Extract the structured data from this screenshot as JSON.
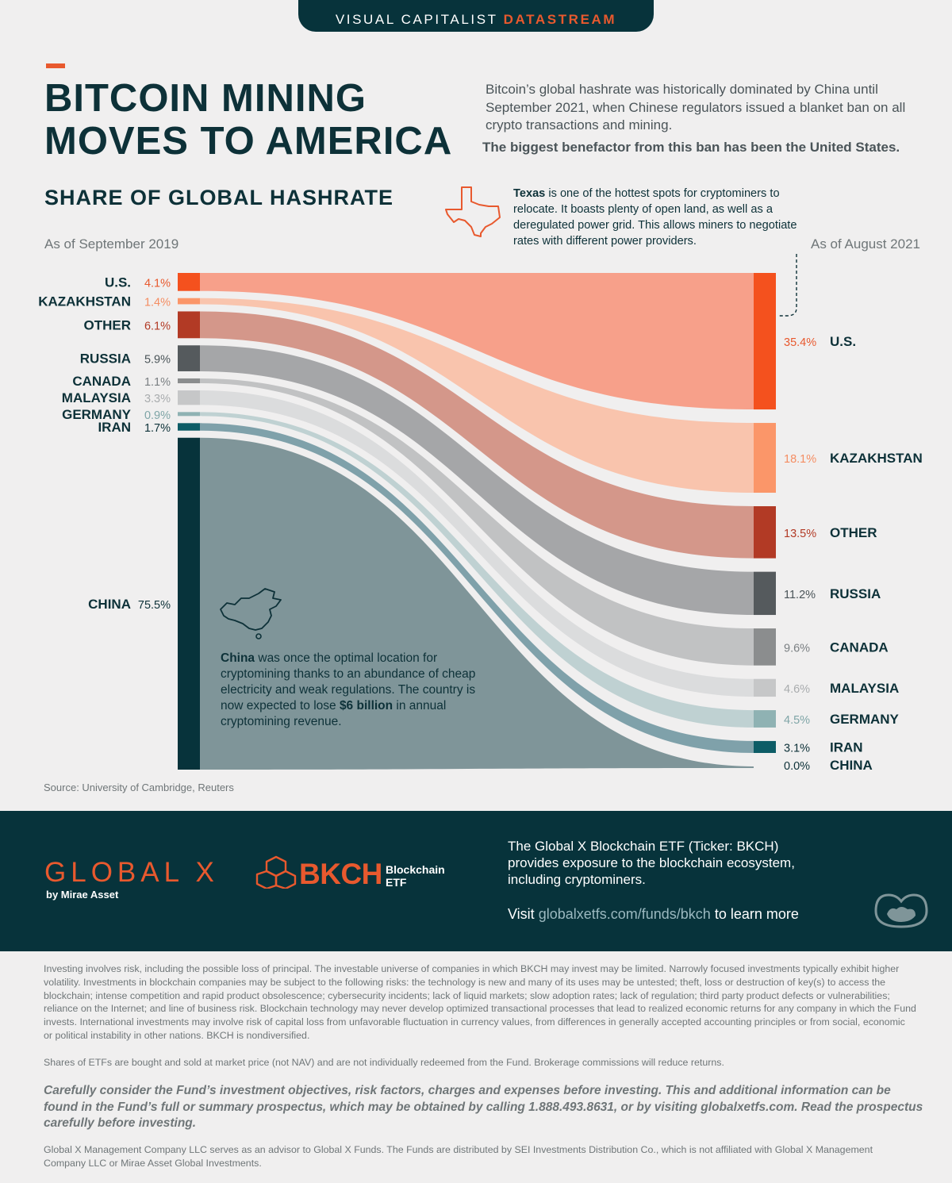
{
  "header": {
    "brand": "VISUAL CAPITALIST",
    "brand_highlight": "DATASTREAM"
  },
  "title": {
    "line1": "BITCOIN MINING",
    "line2": "MOVES TO AMERICA"
  },
  "intro": {
    "text": "Bitcoin’s global hashrate was historically dominated by China until September 2021, when Chinese regulators issued a blanket ban on all crypto transactions and mining.",
    "bold": "The biggest benefactor from this ban has been the United States."
  },
  "chart_title": "SHARE OF GLOBAL HASHRATE",
  "texas_note": {
    "bold": "Texas",
    "text": " is one of the hottest spots for cryptominers to relocate. It boasts plenty of open land, as well as a deregulated power grid. This allows miners to negotiate rates with different power providers."
  },
  "china_note": {
    "bold": "China",
    "text1": " was once the optimal location for cryptomining thanks to an abundance of cheap electricity and weak regulations. The country is now expected to lose ",
    "bold2": "$6 billion",
    "text2": " in annual cryptomining revenue."
  },
  "source": "Source: University of Cambridge, Reuters",
  "chart_data": {
    "type": "sankey",
    "title": "SHARE OF GLOBAL HASHRATE",
    "left_label": "As of September 2019",
    "right_label": "As of August 2021",
    "unit": "%",
    "countries": [
      {
        "name": "U.S.",
        "left": 4.1,
        "right": 35.4,
        "left_text": "4.1%",
        "right_text": "35.4%",
        "bar_color": "#f4511e",
        "flow_color": "#f7a08a",
        "pct_color_left": "#e8592e",
        "pct_color_right": "#e8592e"
      },
      {
        "name": "KAZAKHSTAN",
        "left": 1.4,
        "right": 18.1,
        "left_text": "1.4%",
        "right_text": "18.1%",
        "bar_color": "#fb9669",
        "flow_color": "#f9c4ad",
        "pct_color_left": "#f58d62",
        "pct_color_right": "#f58d62"
      },
      {
        "name": "OTHER",
        "left": 6.1,
        "right": 13.5,
        "left_text": "6.1%",
        "right_text": "13.5%",
        "bar_color": "#b23a25",
        "flow_color": "#d4978a",
        "pct_color_left": "#b23a25",
        "pct_color_right": "#b23a25"
      },
      {
        "name": "RUSSIA",
        "left": 5.9,
        "right": 11.2,
        "left_text": "5.9%",
        "right_text": "11.2%",
        "bar_color": "#555a5d",
        "flow_color": "#a5a6a8",
        "pct_color_left": "#4a5458",
        "pct_color_right": "#4a5458"
      },
      {
        "name": "CANADA",
        "left": 1.1,
        "right": 9.6,
        "left_text": "1.1%",
        "right_text": "9.6%",
        "bar_color": "#8b8d8e",
        "flow_color": "#c1c2c3",
        "pct_color_left": "#7a7f82",
        "pct_color_right": "#7a7f82"
      },
      {
        "name": "MALAYSIA",
        "left": 3.3,
        "right": 4.6,
        "left_text": "3.3%",
        "right_text": "4.6%",
        "bar_color": "#c6c7c8",
        "flow_color": "#dbdcdd",
        "pct_color_left": "#a9acae",
        "pct_color_right": "#a9acae"
      },
      {
        "name": "GERMANY",
        "left": 0.9,
        "right": 4.5,
        "left_text": "0.9%",
        "right_text": "4.5%",
        "bar_color": "#8fb2b3",
        "flow_color": "#bfd1d2",
        "pct_color_left": "#7fa5a7",
        "pct_color_right": "#7fa5a7"
      },
      {
        "name": "IRAN",
        "left": 1.7,
        "right": 3.1,
        "left_text": "1.7%",
        "right_text": "3.1%",
        "bar_color": "#0d5c66",
        "flow_color": "#7fa1aa",
        "pct_color_left": "#0d3138",
        "pct_color_right": "#0d3138"
      },
      {
        "name": "CHINA",
        "left": 75.5,
        "right": 0.0,
        "left_text": "75.5%",
        "right_text": "0.0%",
        "bar_color": "#07333b",
        "flow_color": "#7f9599",
        "pct_color_left": "#0d3138",
        "pct_color_right": "#0d3138"
      }
    ]
  },
  "footer": {
    "logo": "GLOBAL X",
    "logo_sub": "by Mirae Asset",
    "bkch": "BKCH",
    "bkch_word1": "Blockchain",
    "bkch_word2": "ETF",
    "etf_desc": "The Global X Blockchain ETF (Ticker: BKCH) provides exposure to the blockchain ecosystem, including cryptominers.",
    "visit_pre": "Visit ",
    "visit_url": "globalxetfs.com/funds/bkch",
    "visit_post": " to learn more"
  },
  "disclaimers": {
    "p1": "Investing involves risk, including the possible loss of principal. The investable universe of companies in which BKCH may invest may be limited. Narrowly focused investments typically exhibit higher volatility. Investments in blockchain companies may be subject to the following risks: the technology is new and many of its uses may be untested; theft, loss or destruction of key(s) to access the blockchain; intense competition and rapid product obsolescence; cybersecurity incidents; lack of liquid markets; slow adoption rates; lack of regulation; third party product defects or vulnerabilities; reliance on the Internet; and line of business risk. Blockchain technology may never develop optimized transactional processes that lead to realized economic returns for any company in which the Fund invests. International investments may involve risk of capital loss from unfavorable fluctuation in currency values, from differences in generally accepted accounting principles or from social, economic or political instability in other nations. BKCH is nondiversified.",
    "p2": "Shares of ETFs are bought and sold at market price (not NAV) and are not individually redeemed from the Fund. Brokerage commissions will reduce returns.",
    "p3": "Carefully consider the Fund’s investment objectives, risk factors, charges and expenses before investing. This and additional information can be found in the Fund’s full or summary prospectus, which may be obtained by calling 1.888.493.8631, or by visiting globalxetfs.com. Read the prospectus carefully before investing.",
    "p4": "Global X Management Company LLC serves as an advisor to Global X Funds. The Funds are distributed by SEI Investments Distribution Co., which is not affiliated with Global X Management Company LLC or Mirae Asset Global Investments."
  }
}
